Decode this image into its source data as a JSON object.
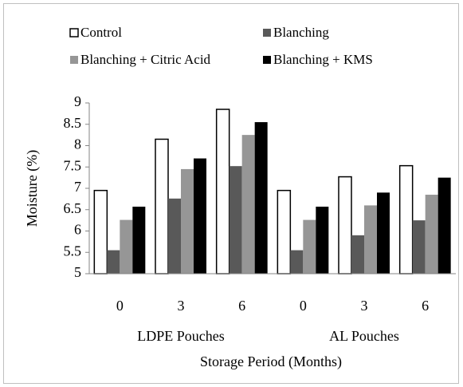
{
  "chart_data": {
    "type": "bar",
    "ylabel": "Moisture (%)",
    "xlabel": "Storage Period (Months)",
    "categories": [
      "0",
      "3",
      "6",
      "0",
      "3",
      "6"
    ],
    "category_groups": [
      "LDPE Pouches",
      "AL Pouches"
    ],
    "series": [
      {
        "name": "Control",
        "color": "#ffffff",
        "edgecolor": "#000000",
        "values": [
          6.95,
          8.15,
          8.85,
          6.95,
          7.27,
          7.53
        ]
      },
      {
        "name": "Blanching",
        "color": "#595959",
        "values": [
          5.55,
          6.76,
          7.52,
          5.55,
          5.9,
          6.25
        ]
      },
      {
        "name": "Blanching + Citric Acid",
        "color": "#969696",
        "values": [
          6.26,
          7.45,
          8.25,
          6.26,
          6.6,
          6.85
        ]
      },
      {
        "name": "Blanching + KMS",
        "color": "#000000",
        "values": [
          6.57,
          7.7,
          8.55,
          6.57,
          6.9,
          7.25
        ]
      }
    ],
    "ylim": [
      5,
      9
    ],
    "yticks": [
      5,
      5.5,
      6,
      6.5,
      7,
      7.5,
      8,
      8.5,
      9
    ],
    "grid": false,
    "legend": "top"
  }
}
